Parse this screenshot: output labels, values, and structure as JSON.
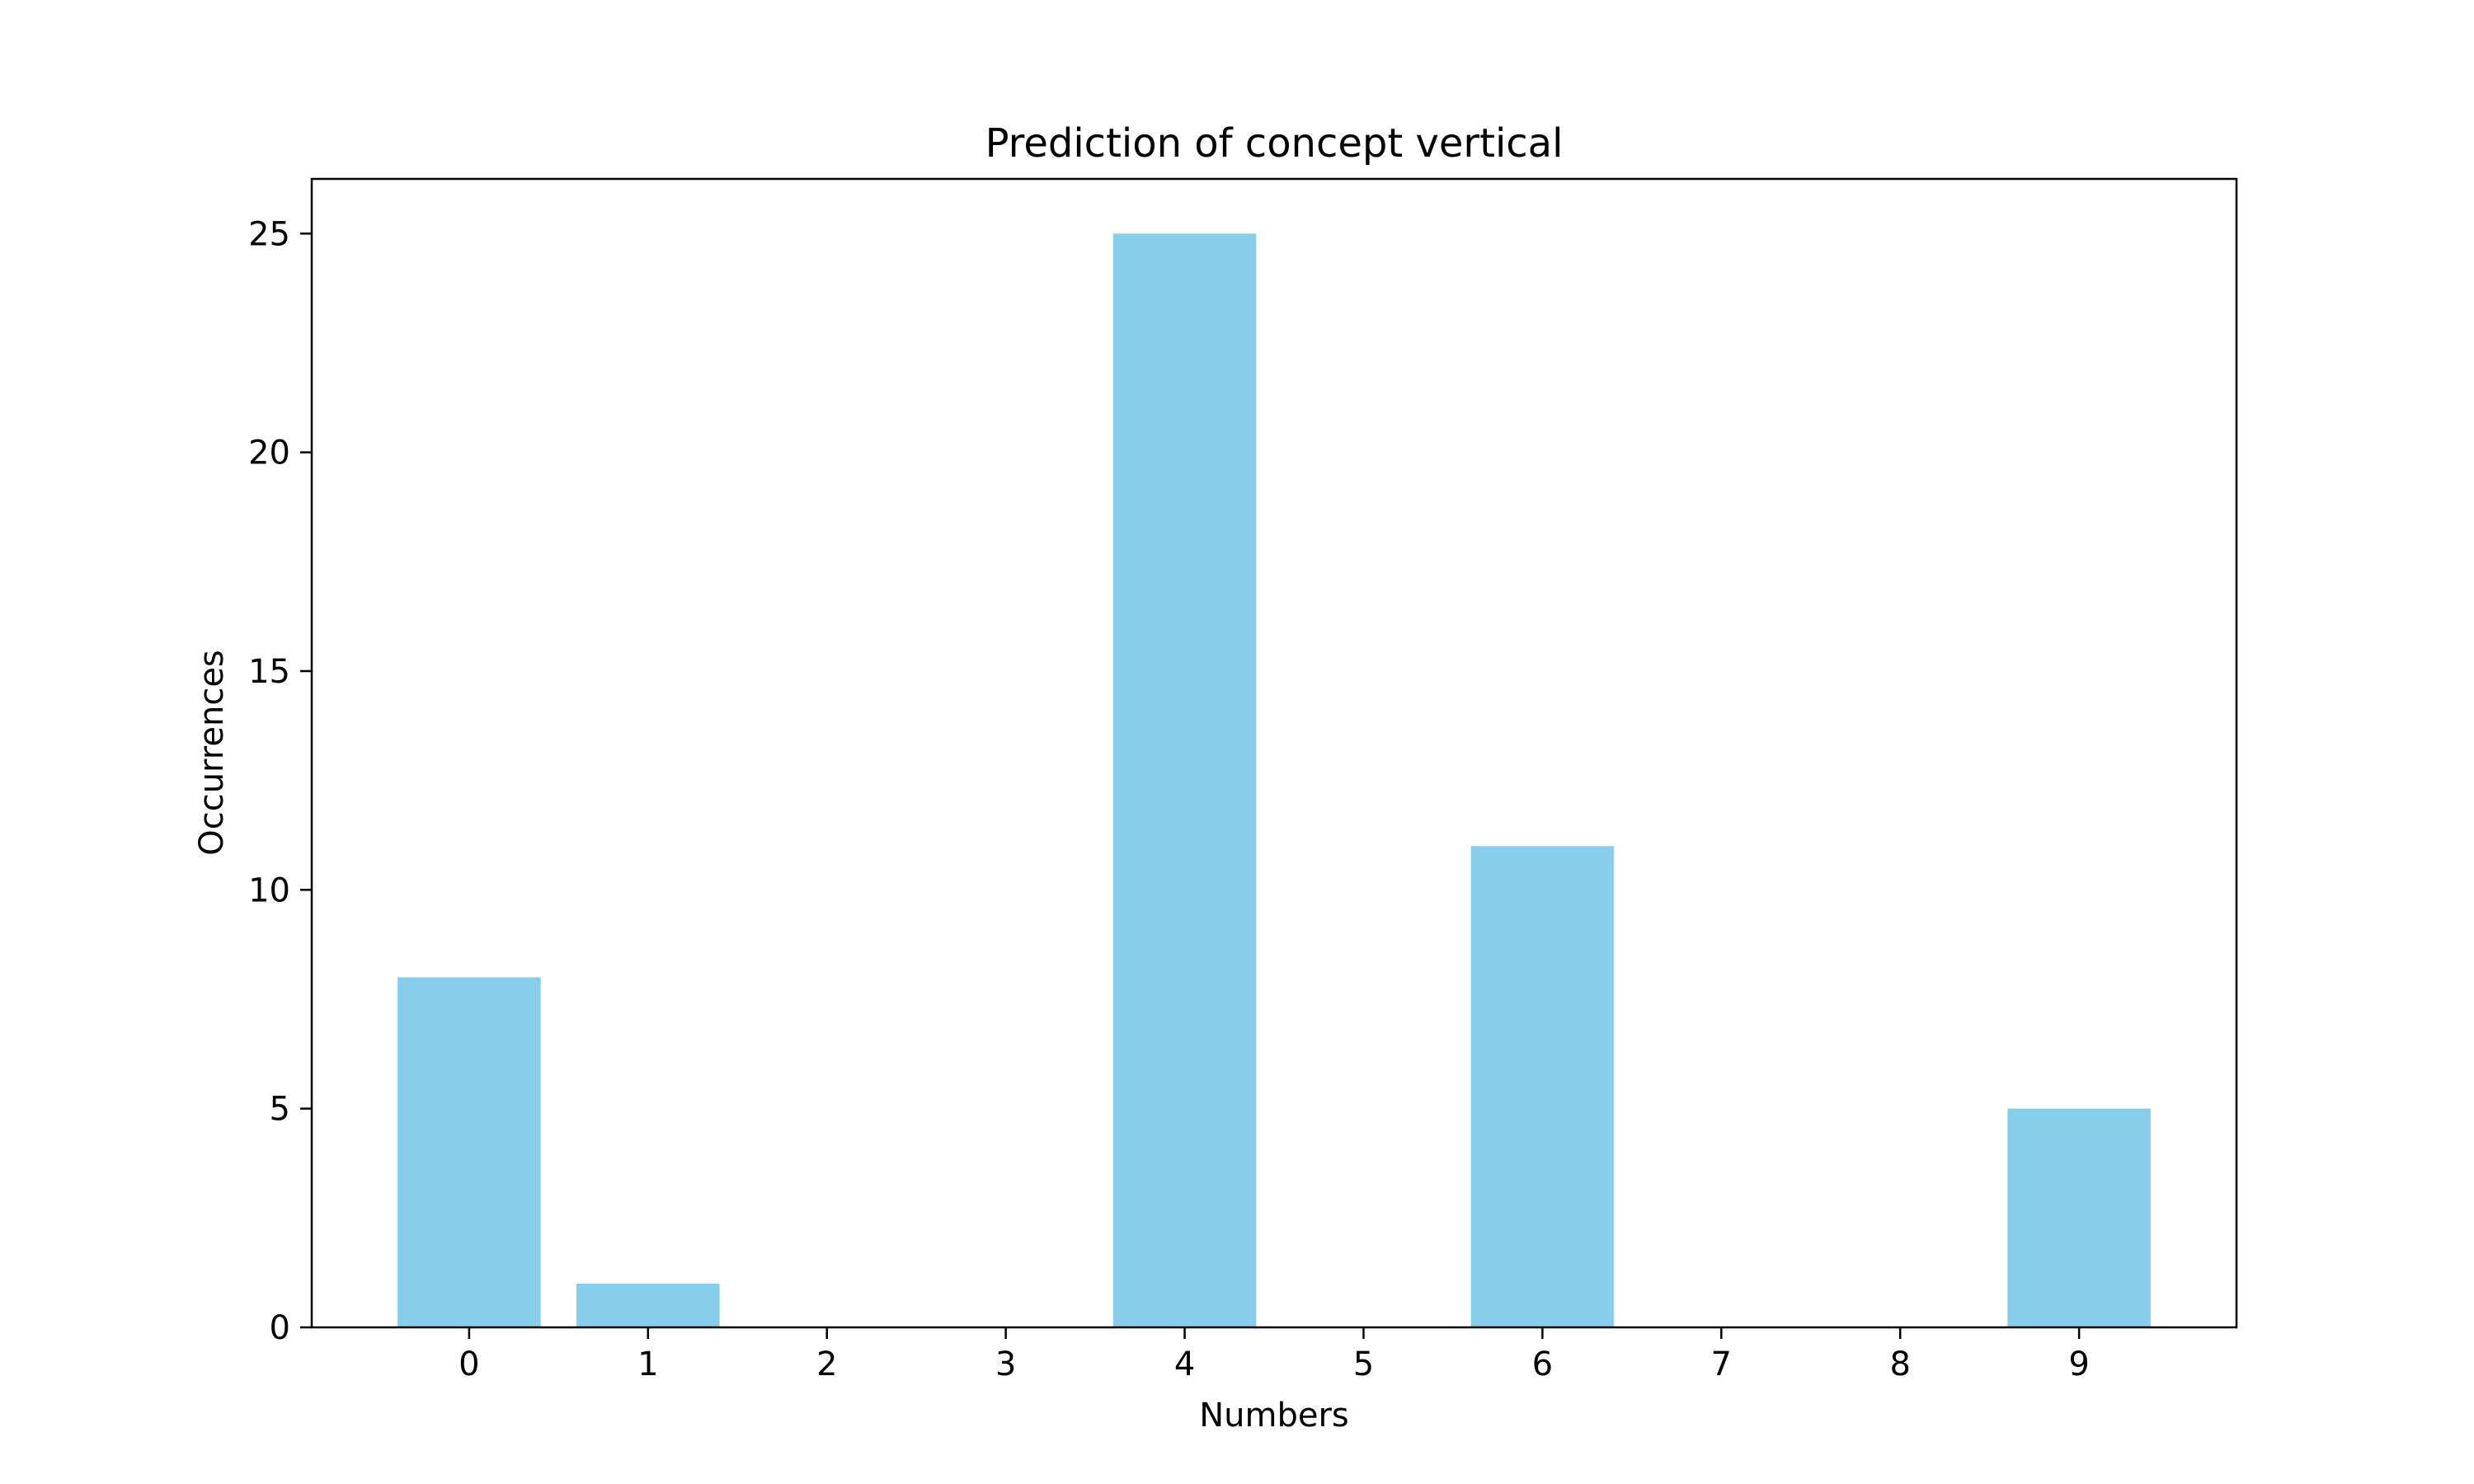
{
  "chart_data": {
    "type": "bar",
    "title": "Prediction of concept vertical",
    "xlabel": "Numbers",
    "ylabel": "Occurrences",
    "categories": [
      "0",
      "1",
      "2",
      "3",
      "4",
      "5",
      "6",
      "7",
      "8",
      "9"
    ],
    "values": [
      8,
      1,
      0,
      0,
      25,
      0,
      11,
      0,
      0,
      5
    ],
    "ylim": [
      0,
      26.25
    ],
    "yticks": [
      0,
      5,
      10,
      15,
      20,
      25
    ],
    "grid": false,
    "bar_color": "#87CEEB"
  }
}
